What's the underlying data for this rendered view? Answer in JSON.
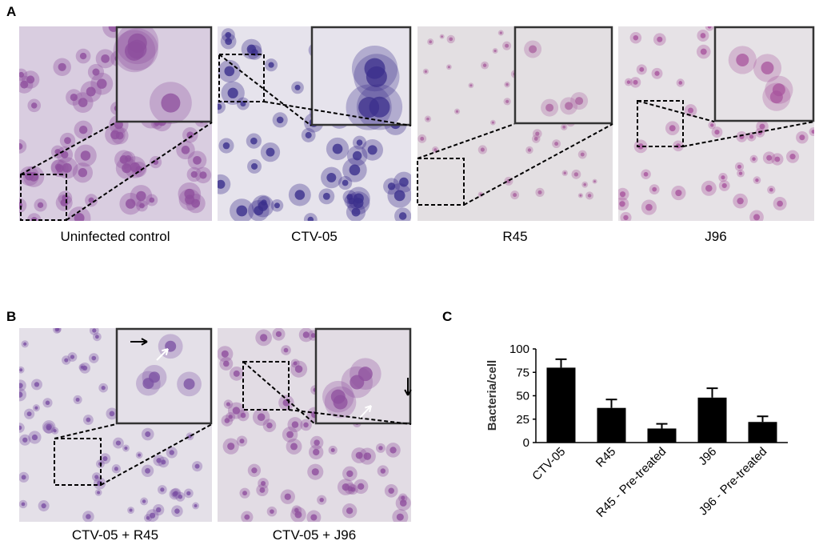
{
  "panels": {
    "A": {
      "label": "A",
      "images": [
        {
          "caption": "Uninfected control"
        },
        {
          "caption": "CTV-05"
        },
        {
          "caption": "R45"
        },
        {
          "caption": "J96"
        }
      ]
    },
    "B": {
      "label": "B",
      "images": [
        {
          "caption": "CTV-05 + R45"
        },
        {
          "caption": "CTV-05 + J96"
        }
      ]
    },
    "C": {
      "label": "C"
    }
  },
  "chart_data": {
    "type": "bar",
    "y_label": "Bacteria/cell",
    "categories": [
      "CTV-05",
      "R45",
      "R45 - Pre-treated",
      "J96",
      "J96 - Pre-treated"
    ],
    "values": [
      80,
      37,
      15,
      48,
      22
    ],
    "errors": [
      9,
      9,
      5,
      10,
      6
    ],
    "color": "#000000",
    "ylim": [
      0,
      100
    ],
    "yticks": [
      0,
      25,
      50,
      75,
      100
    ]
  }
}
